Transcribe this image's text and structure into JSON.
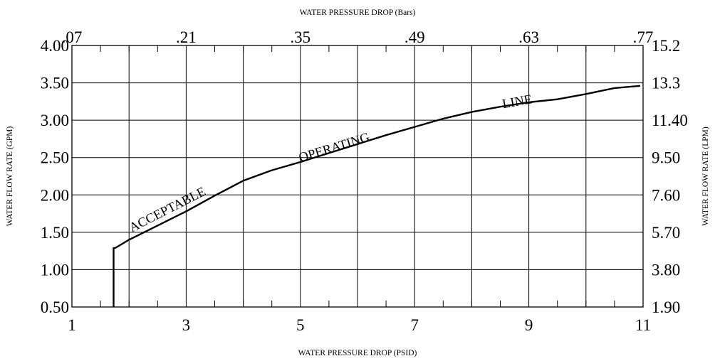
{
  "chart_data": {
    "type": "line",
    "title": "",
    "xlabel": "WATER PRESSURE DROP (PSID)",
    "x2label": "WATER PRESSURE DROP (Bars)",
    "ylabel": "WATER FLOW RATE (GPM)",
    "y2label": "WATER FLOW RATE (LPM)",
    "xlim": [
      1,
      11
    ],
    "ylim": [
      0.5,
      4.0
    ],
    "grid": true,
    "x_ticks": [
      1,
      3,
      5,
      7,
      9,
      11
    ],
    "x_tick_labels": [
      "1",
      "3",
      "5",
      "7",
      "9",
      "11"
    ],
    "x_minor_ticks": [
      1.5,
      2,
      2.5,
      3.5,
      4,
      4.5,
      5.5,
      6,
      6.5,
      7.5,
      8,
      8.5,
      9.5,
      10,
      10.5
    ],
    "y_ticks": [
      0.5,
      1.0,
      1.5,
      2.0,
      2.5,
      3.0,
      3.5,
      4.0
    ],
    "y_tick_labels": [
      "0.50",
      "1.00",
      "1.50",
      "2.00",
      "2.50",
      "3.00",
      "3.50",
      "4.00"
    ],
    "x2_ticks": [
      1,
      3,
      5,
      7,
      9,
      11
    ],
    "x2_tick_labels": [
      ".07",
      ".21",
      ".35",
      ".49",
      ".63",
      ".77"
    ],
    "y2_ticks": [
      0.5,
      1.0,
      1.5,
      2.0,
      2.5,
      3.0,
      3.5,
      4.0
    ],
    "y2_tick_labels": [
      "1.90",
      "3.80",
      "5.70",
      "7.60",
      "9.50",
      "11.40",
      "13.3",
      "15.2"
    ],
    "grid_x": [
      1,
      2,
      3,
      4,
      5,
      6,
      7,
      8,
      9,
      10,
      11
    ],
    "grid_y": [
      0.5,
      1.0,
      1.5,
      2.0,
      2.5,
      3.0,
      3.5,
      4.0
    ],
    "series": [
      {
        "x": [
          1.73,
          1.73,
          1.76,
          2.0,
          2.5,
          3.0,
          3.5,
          4.0,
          4.5,
          5.0,
          5.5,
          6.0,
          6.5,
          7.0,
          7.5,
          8.0,
          8.5,
          9.0,
          9.5,
          10.0,
          10.5,
          10.95
        ],
        "y": [
          0.5,
          1.29,
          1.29,
          1.4,
          1.59,
          1.78,
          1.99,
          2.19,
          2.33,
          2.44,
          2.56,
          2.68,
          2.8,
          2.91,
          3.02,
          3.11,
          3.18,
          3.24,
          3.28,
          3.35,
          3.43,
          3.46
        ]
      }
    ],
    "annotations": [
      {
        "text": "ACCEPTABLE",
        "x": 2.05,
        "y": 1.5,
        "angle": -27
      },
      {
        "text": "OPERATING",
        "x": 5.0,
        "y": 2.44,
        "angle": -17
      },
      {
        "text": "LINE",
        "x": 8.55,
        "y": 3.16,
        "angle": -10
      }
    ]
  }
}
